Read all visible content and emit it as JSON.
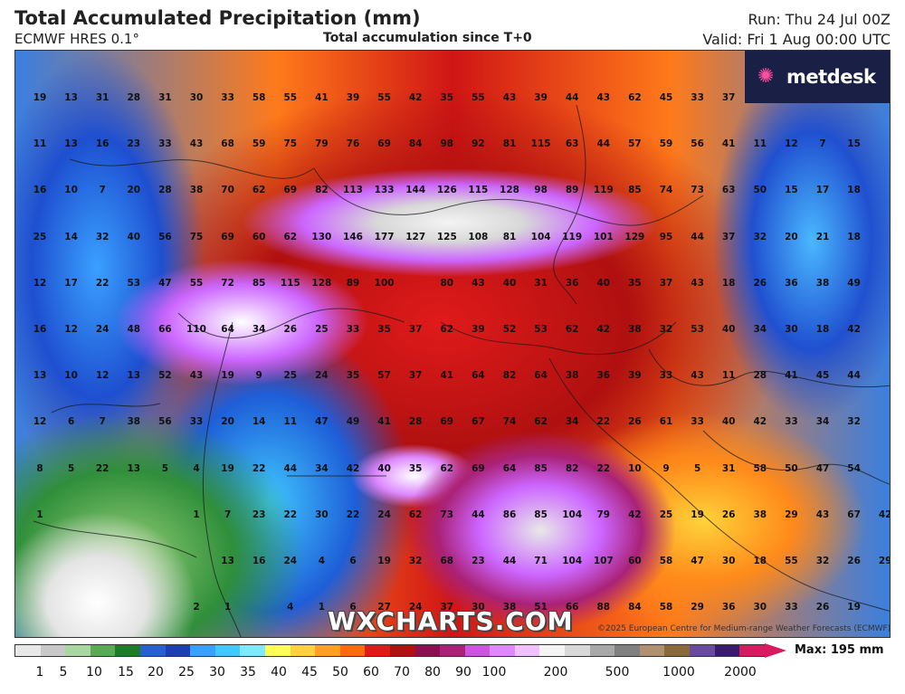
{
  "header": {
    "title": "Total Accumulated Precipitation (mm)",
    "model": "ECMWF HRES 0.1°",
    "subtitle": "Total accumulation since T+0",
    "run": "Run: Thu 24 Jul 00Z",
    "valid": "Valid: Fri 1 Aug 00:00 UTC"
  },
  "logo": {
    "text": "metdesk"
  },
  "watermark": "WXCHARTS.COM",
  "copyright": "©2025 European Centre for Medium-range Weather Forecasts (ECMWF)",
  "scale": {
    "max_label": "Max: 195 mm",
    "colors": [
      "#e8e8e8",
      "#c8c8c8",
      "#a8d8a0",
      "#5aaa55",
      "#1f7a2a",
      "#2a5fd0",
      "#1e3fb0",
      "#3aa0ff",
      "#40c8ff",
      "#80e8ff",
      "#ffff55",
      "#ffd23a",
      "#ffa020",
      "#ff6a10",
      "#e01a1a",
      "#b01010",
      "#8a1050",
      "#aa2277",
      "#cc55dd",
      "#dd88ff",
      "#f0c0ff",
      "#f4f4f4",
      "#d8d8d8",
      "#a8a8a8",
      "#808080",
      "#b09070",
      "#8a6a3a",
      "#6a4a9a",
      "#3a1a6a",
      "#d81b60"
    ],
    "ticks": [
      {
        "label": "1",
        "pos": 44
      },
      {
        "label": "5",
        "pos": 70
      },
      {
        "label": "10",
        "pos": 104
      },
      {
        "label": "15",
        "pos": 139
      },
      {
        "label": "20",
        "pos": 172
      },
      {
        "label": "25",
        "pos": 206
      },
      {
        "label": "30",
        "pos": 240
      },
      {
        "label": "35",
        "pos": 274
      },
      {
        "label": "40",
        "pos": 308
      },
      {
        "label": "45",
        "pos": 342
      },
      {
        "label": "50",
        "pos": 376
      },
      {
        "label": "60",
        "pos": 410
      },
      {
        "label": "70",
        "pos": 444
      },
      {
        "label": "80",
        "pos": 478
      },
      {
        "label": "90",
        "pos": 512
      },
      {
        "label": "100",
        "pos": 546
      },
      {
        "label": "200",
        "pos": 614
      },
      {
        "label": "500",
        "pos": 682
      },
      {
        "label": "1000",
        "pos": 750
      },
      {
        "label": "2000",
        "pos": 818
      }
    ]
  },
  "rows": [
    [
      "19",
      "13",
      "31",
      "28",
      "31",
      "30",
      "33",
      "58",
      "55",
      "41",
      "39",
      "55",
      "42",
      "35",
      "55",
      "43",
      "39",
      "44",
      "43",
      "62",
      "45",
      "33",
      "37",
      "",
      ""
    ],
    [
      "11",
      "13",
      "16",
      "23",
      "33",
      "43",
      "68",
      "59",
      "75",
      "79",
      "76",
      "69",
      "84",
      "98",
      "92",
      "81",
      "115",
      "63",
      "44",
      "57",
      "59",
      "56",
      "41",
      "11",
      "12",
      "7",
      "15"
    ],
    [
      "16",
      "10",
      "7",
      "20",
      "28",
      "38",
      "70",
      "62",
      "69",
      "82",
      "113",
      "133",
      "144",
      "126",
      "115",
      "128",
      "98",
      "89",
      "119",
      "85",
      "74",
      "73",
      "63",
      "50",
      "15",
      "17",
      "18"
    ],
    [
      "25",
      "14",
      "32",
      "40",
      "56",
      "75",
      "69",
      "60",
      "62",
      "130",
      "146",
      "177",
      "127",
      "125",
      "108",
      "81",
      "104",
      "119",
      "101",
      "129",
      "95",
      "44",
      "37",
      "32",
      "20",
      "21",
      "18"
    ],
    [
      "12",
      "17",
      "22",
      "53",
      "47",
      "55",
      "72",
      "85",
      "115",
      "128",
      "89",
      "100",
      "",
      "80",
      "43",
      "40",
      "31",
      "36",
      "40",
      "35",
      "37",
      "43",
      "18",
      "26",
      "36",
      "38",
      "49"
    ],
    [
      "16",
      "12",
      "24",
      "48",
      "66",
      "110",
      "64",
      "34",
      "26",
      "25",
      "33",
      "35",
      "37",
      "62",
      "39",
      "52",
      "53",
      "62",
      "42",
      "38",
      "32",
      "53",
      "40",
      "34",
      "30",
      "18",
      "42"
    ],
    [
      "13",
      "10",
      "12",
      "13",
      "52",
      "43",
      "19",
      "9",
      "25",
      "24",
      "35",
      "57",
      "37",
      "41",
      "64",
      "82",
      "64",
      "38",
      "36",
      "39",
      "33",
      "43",
      "11",
      "28",
      "41",
      "45",
      "44"
    ],
    [
      "12",
      "6",
      "7",
      "38",
      "56",
      "33",
      "20",
      "14",
      "11",
      "47",
      "49",
      "41",
      "28",
      "69",
      "67",
      "74",
      "62",
      "34",
      "22",
      "26",
      "61",
      "33",
      "40",
      "42",
      "33",
      "34",
      "32"
    ],
    [
      "8",
      "5",
      "22",
      "13",
      "5",
      "4",
      "19",
      "22",
      "44",
      "34",
      "42",
      "40",
      "35",
      "62",
      "69",
      "64",
      "85",
      "82",
      "22",
      "10",
      "9",
      "5",
      "31",
      "58",
      "50",
      "47",
      "54"
    ],
    [
      "1",
      "",
      "",
      "",
      "",
      "1",
      "7",
      "23",
      "22",
      "30",
      "22",
      "24",
      "62",
      "73",
      "44",
      "86",
      "85",
      "104",
      "79",
      "42",
      "25",
      "19",
      "26",
      "38",
      "29",
      "43",
      "67",
      "42"
    ],
    [
      "",
      "",
      "",
      "",
      "",
      "",
      "13",
      "16",
      "24",
      "4",
      "6",
      "19",
      "32",
      "68",
      "23",
      "44",
      "71",
      "104",
      "107",
      "60",
      "58",
      "47",
      "30",
      "18",
      "55",
      "32",
      "26",
      "29"
    ],
    [
      "",
      "",
      "",
      "",
      "",
      "2",
      "1",
      "",
      "4",
      "1",
      "6",
      "27",
      "24",
      "37",
      "30",
      "38",
      "51",
      "66",
      "88",
      "84",
      "58",
      "29",
      "36",
      "30",
      "33",
      "26",
      "19"
    ]
  ]
}
